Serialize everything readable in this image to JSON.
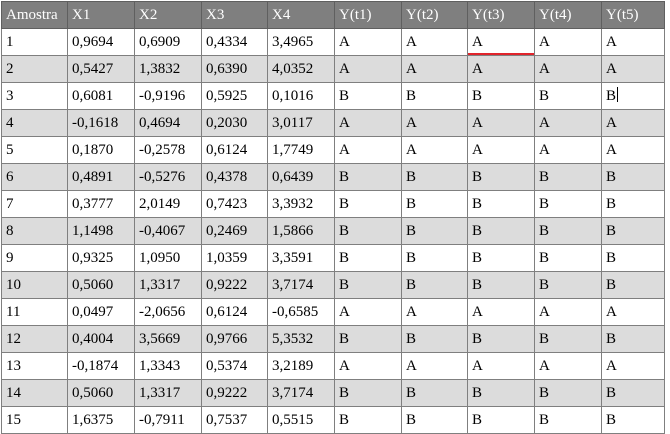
{
  "table": {
    "columns": [
      "Amostra",
      "X1",
      "X2",
      "X3",
      "X4",
      "Y(t1)",
      "Y(t2)",
      "Y(t3)",
      "Y(t4)",
      "Y(t5)"
    ],
    "rows": [
      [
        "1",
        "0,9694",
        "0,6909",
        "0,4334",
        "3,4965",
        "A",
        "A",
        "A",
        "A",
        "A"
      ],
      [
        "2",
        "0,5427",
        "1,3832",
        "0,6390",
        "4,0352",
        "A",
        "A",
        "A",
        "A",
        "A"
      ],
      [
        "3",
        "0,6081",
        "-0,9196",
        "0,5925",
        "0,1016",
        "B",
        "B",
        "B",
        "B",
        "B"
      ],
      [
        "4",
        "-0,1618",
        "0,4694",
        "0,2030",
        "3,0117",
        "A",
        "A",
        "A",
        "A",
        "A"
      ],
      [
        "5",
        "0,1870",
        "-0,2578",
        "0,6124",
        "1,7749",
        "A",
        "A",
        "A",
        "A",
        "A"
      ],
      [
        "6",
        "0,4891",
        "-0,5276",
        "0,4378",
        "0,6439",
        "B",
        "B",
        "B",
        "B",
        "B"
      ],
      [
        "7",
        "0,3777",
        "2,0149",
        "0,7423",
        "3,3932",
        "B",
        "B",
        "B",
        "B",
        "B"
      ],
      [
        "8",
        "1,1498",
        "-0,4067",
        "0,2469",
        "1,5866",
        "B",
        "B",
        "B",
        "B",
        "B"
      ],
      [
        "9",
        "0,9325",
        "1,0950",
        "1,0359",
        "3,3591",
        "B",
        "B",
        "B",
        "B",
        "B"
      ],
      [
        "10",
        "0,5060",
        "1,3317",
        "0,9222",
        "3,7174",
        "B",
        "B",
        "B",
        "B",
        "B"
      ],
      [
        "11",
        "0,0497",
        "-2,0656",
        "0,6124",
        "-0,6585",
        "A",
        "A",
        "A",
        "A",
        "A"
      ],
      [
        "12",
        "0,4004",
        "3,5669",
        "0,9766",
        "5,3532",
        "B",
        "B",
        "B",
        "B",
        "B"
      ],
      [
        "13",
        "-0,1874",
        "1,3343",
        "0,5374",
        "3,2189",
        "A",
        "A",
        "A",
        "A",
        "A"
      ],
      [
        "14",
        "0,5060",
        "1,3317",
        "0,9222",
        "3,7174",
        "B",
        "B",
        "B",
        "B",
        "B"
      ],
      [
        "15",
        "1,6375",
        "-0,7911",
        "0,7537",
        "0,5515",
        "B",
        "B",
        "B",
        "B",
        "B"
      ]
    ]
  },
  "colors": {
    "header_background": "#7f7f7f",
    "header_text": "#ffffff",
    "stripe_background": "#dcdcdc",
    "grid_line": "#7f7f7f",
    "active_cell_marker": "#e0242b"
  }
}
